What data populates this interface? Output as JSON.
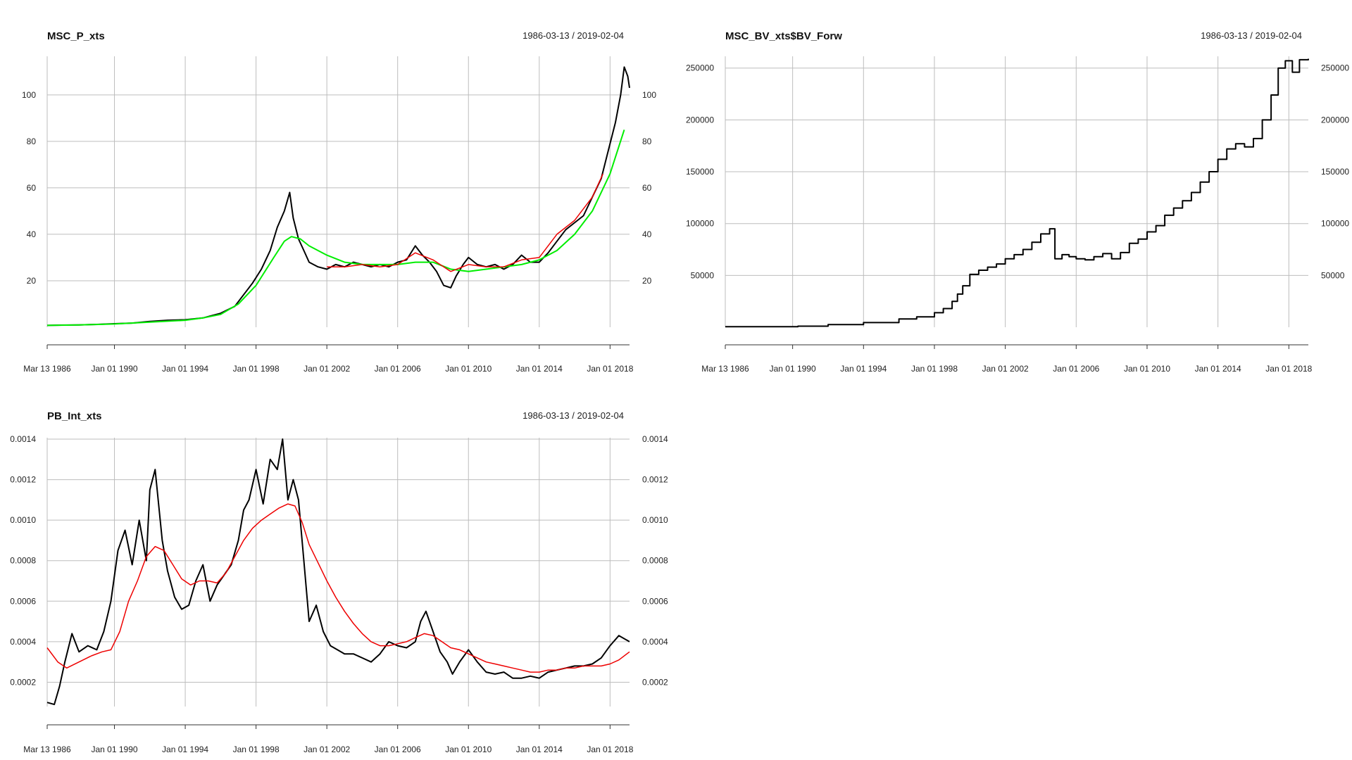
{
  "chart_data": [
    {
      "type": "line",
      "title": "MSC_P_xts",
      "date_range": "1986-03-13 / 2019-02-04",
      "x_tick_labels": [
        "Mar 13 1986",
        "Jan 01 1990",
        "Jan 01 1994",
        "Jan 01 1998",
        "Jan 01 2002",
        "Jan 01 2006",
        "Jan 01 2010",
        "Jan 01 2014",
        "Jan 01 2018"
      ],
      "x_tick_years": [
        1986.2,
        1990,
        1994,
        1998,
        2002,
        2006,
        2010,
        2014,
        2018
      ],
      "xlim": [
        1986.2,
        2019.1
      ],
      "ylim": [
        0,
        116
      ],
      "y_ticks": [
        20,
        40,
        60,
        80,
        100
      ],
      "y_tick_labels": [
        "20",
        "40",
        "60",
        "80",
        "100"
      ],
      "grid": true,
      "series": [
        {
          "color": "#000000",
          "width": 2,
          "x": [
            1986.2,
            1987,
            1988,
            1989,
            1990,
            1991,
            1992,
            1993,
            1994,
            1995,
            1996,
            1996.8,
            1997.3,
            1997.8,
            1998.3,
            1998.8,
            1999.2,
            1999.6,
            1999.9,
            2000.1,
            2000.4,
            2000.7,
            2001,
            2001.5,
            2002,
            2002.5,
            2003,
            2003.5,
            2004,
            2004.5,
            2005,
            2005.5,
            2006,
            2006.5,
            2007,
            2007.4,
            2007.8,
            2008.2,
            2008.6,
            2009,
            2009.3,
            2009.7,
            2010,
            2010.5,
            2011,
            2011.5,
            2012,
            2012.5,
            2013,
            2013.5,
            2014,
            2014.5,
            2015,
            2015.5,
            2016,
            2016.5,
            2017,
            2017.5,
            2017.9,
            2018.3,
            2018.6,
            2018.8,
            2019,
            2019.1
          ],
          "y": [
            0.8,
            0.9,
            1,
            1.2,
            1.5,
            1.8,
            2.5,
            3,
            3.2,
            4,
            6,
            9,
            14,
            19,
            25,
            33,
            43,
            50,
            58,
            47,
            38,
            33,
            28,
            26,
            25,
            27,
            26,
            28,
            27,
            26,
            27,
            26,
            28,
            29,
            35,
            31,
            28,
            24,
            18,
            17,
            22,
            27,
            30,
            27,
            26,
            27,
            25,
            27,
            31,
            28,
            28,
            32,
            37,
            42,
            45,
            48,
            56,
            64,
            76,
            88,
            100,
            112,
            108,
            103
          ]
        },
        {
          "color": "#00ee00",
          "width": 2,
          "x": [
            1986.2,
            1988,
            1990,
            1992,
            1994,
            1995,
            1996,
            1997,
            1998,
            1999,
            1999.6,
            2000,
            2000.5,
            2001,
            2002,
            2003,
            2004,
            2005,
            2006,
            2007,
            2008,
            2009,
            2010,
            2011,
            2012,
            2013,
            2014,
            2015,
            2016,
            2017,
            2018,
            2018.8
          ],
          "y": [
            0.8,
            1,
            1.4,
            2.2,
            3,
            4,
            5.5,
            10,
            18,
            30,
            37,
            39,
            38,
            35,
            31,
            28,
            27,
            27,
            27,
            28,
            28,
            25,
            24,
            25,
            26,
            27,
            29,
            33,
            40,
            50,
            66,
            85
          ]
        },
        {
          "color": "#ee0000",
          "width": 1.5,
          "x": [
            2002,
            2003,
            2004,
            2005,
            2006,
            2007,
            2008,
            2009,
            2010,
            2011,
            2012,
            2013,
            2014,
            2015,
            2016,
            2017,
            2017.6
          ],
          "y": [
            26,
            26,
            27,
            26,
            27,
            32,
            29,
            24,
            27,
            26,
            26,
            29,
            30,
            40,
            46,
            56,
            66
          ]
        }
      ]
    },
    {
      "type": "line",
      "title": "MSC_BV_xts$BV_Forw",
      "date_range": "1986-03-13 / 2019-02-04",
      "x_tick_labels": [
        "Mar 13 1986",
        "Jan 01 1990",
        "Jan 01 1994",
        "Jan 01 1998",
        "Jan 01 2002",
        "Jan 01 2006",
        "Jan 01 2010",
        "Jan 01 2014",
        "Jan 01 2018"
      ],
      "x_tick_years": [
        1986.2,
        1990,
        1994,
        1998,
        2002,
        2006,
        2010,
        2014,
        2018
      ],
      "xlim": [
        1986.2,
        2019.1
      ],
      "ylim": [
        0,
        260000
      ],
      "y_ticks": [
        50000,
        100000,
        150000,
        200000,
        250000
      ],
      "y_tick_labels": [
        "50000",
        "100000",
        "150000",
        "200000",
        "250000"
      ],
      "grid": true,
      "step": true,
      "series": [
        {
          "color": "#000000",
          "width": 2,
          "x": [
            1986.2,
            1990.3,
            1992,
            1994,
            1996,
            1997,
            1998,
            1998.5,
            1999,
            1999.3,
            1999.6,
            2000,
            2000.5,
            2001,
            2001.5,
            2002,
            2002.5,
            2003,
            2003.5,
            2004,
            2004.5,
            2004.8,
            2005.2,
            2005.6,
            2006,
            2006.5,
            2007,
            2007.5,
            2008,
            2008.5,
            2009,
            2009.5,
            2010,
            2010.5,
            2011,
            2011.5,
            2012,
            2012.5,
            2013,
            2013.5,
            2014,
            2014.5,
            2015,
            2015.5,
            2016,
            2016.5,
            2017,
            2017.4,
            2017.8,
            2018.2,
            2018.6,
            2019.1
          ],
          "y": [
            500,
            1000,
            2500,
            4500,
            8000,
            10000,
            14000,
            18000,
            25000,
            32000,
            40000,
            51000,
            55000,
            58000,
            61000,
            66000,
            70000,
            75000,
            82000,
            90000,
            95000,
            66000,
            70000,
            68000,
            66000,
            65000,
            68000,
            71000,
            66000,
            72000,
            81000,
            85000,
            92000,
            98000,
            108000,
            115000,
            122000,
            130000,
            140000,
            150000,
            162000,
            172000,
            177000,
            174000,
            182000,
            200000,
            224000,
            250000,
            257000,
            246000,
            258000,
            259000
          ]
        }
      ]
    },
    {
      "type": "line",
      "title": "PB_Int_xts",
      "date_range": "1986-03-13 / 2019-02-04",
      "x_tick_labels": [
        "Mar 13 1986",
        "Jan 01 1990",
        "Jan 01 1994",
        "Jan 01 1998",
        "Jan 01 2002",
        "Jan 01 2006",
        "Jan 01 2010",
        "Jan 01 2014",
        "Jan 01 2018"
      ],
      "x_tick_years": [
        1986.2,
        1990,
        1994,
        1998,
        2002,
        2006,
        2010,
        2014,
        2018
      ],
      "xlim": [
        1986.2,
        2019.1
      ],
      "ylim": [
        8e-05,
        0.0014
      ],
      "y_ticks": [
        0.0002,
        0.0004,
        0.0006,
        0.0008,
        0.001,
        0.0012,
        0.0014
      ],
      "y_tick_labels": [
        "0.0002",
        "0.0004",
        "0.0006",
        "0.0008",
        "0.0010",
        "0.0012",
        "0.0014"
      ],
      "grid": true,
      "series": [
        {
          "color": "#000000",
          "width": 2,
          "x": [
            1986.2,
            1986.6,
            1986.9,
            1987.2,
            1987.6,
            1988,
            1988.5,
            1989,
            1989.4,
            1989.8,
            1990.2,
            1990.6,
            1991,
            1991.4,
            1991.8,
            1992,
            1992.3,
            1992.7,
            1993,
            1993.4,
            1993.8,
            1994.2,
            1994.6,
            1995,
            1995.4,
            1995.8,
            1996.2,
            1996.6,
            1997,
            1997.3,
            1997.6,
            1998,
            1998.4,
            1998.8,
            1999.2,
            1999.5,
            1999.8,
            2000.1,
            2000.4,
            2000.7,
            2001,
            2001.4,
            2001.8,
            2002.2,
            2002.6,
            2003,
            2003.5,
            2004,
            2004.5,
            2005,
            2005.5,
            2006,
            2006.5,
            2007,
            2007.3,
            2007.6,
            2008,
            2008.4,
            2008.8,
            2009.1,
            2009.5,
            2010,
            2010.5,
            2011,
            2011.5,
            2012,
            2012.5,
            2013,
            2013.5,
            2014,
            2014.5,
            2015,
            2015.5,
            2016,
            2016.5,
            2017,
            2017.5,
            2018,
            2018.5,
            2019.1
          ],
          "y": [
            0.0001,
            9e-05,
            0.00018,
            0.0003,
            0.00044,
            0.00035,
            0.00038,
            0.00036,
            0.00045,
            0.0006,
            0.00085,
            0.00095,
            0.00078,
            0.001,
            0.0008,
            0.00115,
            0.00125,
            0.0009,
            0.00075,
            0.00062,
            0.00056,
            0.00058,
            0.0007,
            0.00078,
            0.0006,
            0.00068,
            0.00073,
            0.00078,
            0.0009,
            0.00105,
            0.0011,
            0.00125,
            0.00108,
            0.0013,
            0.00125,
            0.0014,
            0.0011,
            0.0012,
            0.0011,
            0.0008,
            0.0005,
            0.00058,
            0.00045,
            0.00038,
            0.00036,
            0.00034,
            0.00034,
            0.00032,
            0.0003,
            0.00034,
            0.0004,
            0.00038,
            0.00037,
            0.0004,
            0.0005,
            0.00055,
            0.00045,
            0.00035,
            0.0003,
            0.00024,
            0.0003,
            0.00036,
            0.0003,
            0.00025,
            0.00024,
            0.00025,
            0.00022,
            0.00022,
            0.00023,
            0.00022,
            0.00025,
            0.00026,
            0.00027,
            0.00028,
            0.00028,
            0.00029,
            0.00032,
            0.00038,
            0.00043,
            0.0004
          ]
        },
        {
          "color": "#ee0000",
          "width": 1.5,
          "x": [
            1986.2,
            1986.8,
            1987.3,
            1988,
            1988.7,
            1989.3,
            1989.8,
            1990.3,
            1990.8,
            1991.3,
            1991.8,
            1992.3,
            1992.8,
            1993.3,
            1993.8,
            1994.3,
            1994.8,
            1995.3,
            1995.8,
            1996.3,
            1996.8,
            1997.3,
            1997.8,
            1998.3,
            1998.8,
            1999.3,
            1999.8,
            2000.2,
            2000.6,
            2001,
            2001.5,
            2002,
            2002.5,
            2003,
            2003.5,
            2004,
            2004.5,
            2005,
            2005.5,
            2006,
            2006.5,
            2007,
            2007.5,
            2008,
            2008.5,
            2009,
            2009.5,
            2010,
            2010.5,
            2011,
            2011.5,
            2012,
            2012.5,
            2013,
            2013.5,
            2014,
            2014.5,
            2015,
            2015.5,
            2016,
            2016.5,
            2017,
            2017.5,
            2018,
            2018.5,
            2019.1
          ],
          "y": [
            0.00037,
            0.0003,
            0.00027,
            0.0003,
            0.00033,
            0.00035,
            0.00036,
            0.00045,
            0.0006,
            0.0007,
            0.00082,
            0.00087,
            0.00085,
            0.00078,
            0.00071,
            0.00068,
            0.0007,
            0.0007,
            0.00069,
            0.00074,
            0.00082,
            0.0009,
            0.00096,
            0.001,
            0.00103,
            0.00106,
            0.00108,
            0.00107,
            0.00099,
            0.00088,
            0.00079,
            0.0007,
            0.00062,
            0.00055,
            0.00049,
            0.00044,
            0.0004,
            0.00038,
            0.00038,
            0.00039,
            0.0004,
            0.00042,
            0.00044,
            0.00043,
            0.0004,
            0.00037,
            0.00036,
            0.00034,
            0.00032,
            0.0003,
            0.00029,
            0.00028,
            0.00027,
            0.00026,
            0.00025,
            0.00025,
            0.00026,
            0.00026,
            0.00027,
            0.00027,
            0.00028,
            0.00028,
            0.00028,
            0.00029,
            0.00031,
            0.00035
          ]
        }
      ]
    }
  ]
}
